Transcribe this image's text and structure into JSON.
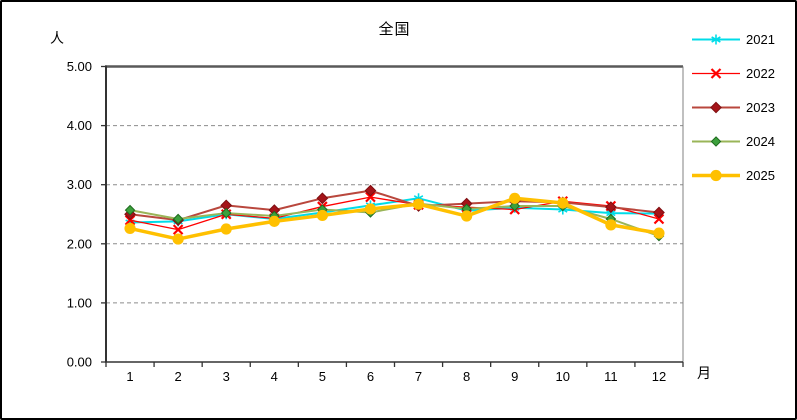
{
  "window": {
    "background": "#ffffff",
    "border_color": "#000000"
  },
  "chart_data": {
    "type": "line",
    "title": "全国",
    "ylabel": "人",
    "xlabel": "月",
    "ylim": [
      0,
      5
    ],
    "ytick_labels": [
      "0.00",
      "1.00",
      "2.00",
      "3.00",
      "4.00",
      "5.00"
    ],
    "categories": [
      "1",
      "2",
      "3",
      "4",
      "5",
      "6",
      "7",
      "8",
      "9",
      "10",
      "11",
      "12"
    ],
    "grid": "horizontal-dashed",
    "gridline_color": "#8c8c8c",
    "legend_position": "right",
    "series": [
      {
        "name": "2021",
        "color": "#00DCE8",
        "marker": "star",
        "marker_color": "#00DCE8",
        "line_width": 2,
        "values": [
          2.36,
          2.38,
          2.5,
          2.42,
          2.53,
          2.65,
          2.77,
          2.56,
          2.61,
          2.58,
          2.52,
          2.51
        ]
      },
      {
        "name": "2022",
        "color": "#FF0000",
        "marker": "x",
        "marker_color": "#FF0000",
        "line_width": 1.3,
        "values": [
          2.4,
          2.24,
          2.5,
          2.43,
          2.63,
          2.79,
          2.66,
          2.62,
          2.58,
          2.72,
          2.64,
          2.42
        ]
      },
      {
        "name": "2023",
        "color": "#B9473D",
        "marker": "diamond",
        "marker_color": "#A51419",
        "marker_stroke": "#7E0F12",
        "line_width": 2,
        "values": [
          2.5,
          2.4,
          2.65,
          2.57,
          2.77,
          2.9,
          2.64,
          2.68,
          2.72,
          2.7,
          2.62,
          2.53
        ]
      },
      {
        "name": "2024",
        "color": "#9AB558",
        "marker": "diamond",
        "marker_color": "#3CA03C",
        "marker_stroke": "#1F6B1F",
        "line_width": 2,
        "values": [
          2.57,
          2.42,
          2.52,
          2.47,
          2.58,
          2.53,
          2.68,
          2.59,
          2.64,
          2.64,
          2.42,
          2.13
        ]
      },
      {
        "name": "2025",
        "color": "#FFC000",
        "marker": "circle",
        "marker_color": "#FFC000",
        "line_width": 3.5,
        "values": [
          2.26,
          2.08,
          2.25,
          2.38,
          2.48,
          2.59,
          2.67,
          2.47,
          2.77,
          2.69,
          2.32,
          2.18
        ]
      }
    ]
  }
}
